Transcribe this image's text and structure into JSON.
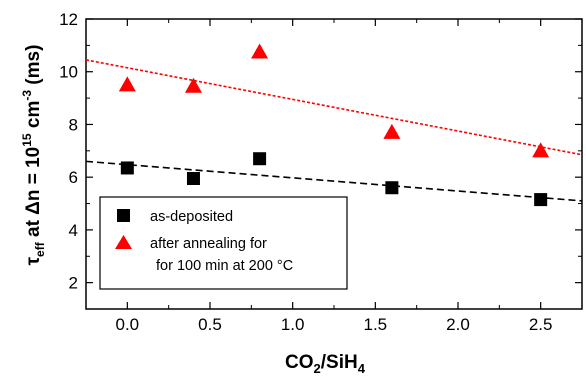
{
  "chart_data": {
    "type": "scatter",
    "xlabel": {
      "base": "CO",
      "sub1": "2",
      "mid": "/SiH",
      "sub2": "4"
    },
    "ylabel": {
      "tau": "τ",
      "tau_sub": "eff",
      "mid": " at Δn = 10",
      "exp": "15",
      "unit_pre": " cm",
      "unit_exp": "-3",
      "tail": " (ms)"
    },
    "xlim": [
      -0.25,
      2.75
    ],
    "ylim": [
      1,
      12
    ],
    "xticks": [
      "0.0",
      "0.5",
      "1.0",
      "1.5",
      "2.0",
      "2.5"
    ],
    "xtick_values": [
      0,
      0.5,
      1.0,
      1.5,
      2.0,
      2.5
    ],
    "yticks": [
      "2",
      "4",
      "6",
      "8",
      "10",
      "12"
    ],
    "ytick_values": [
      2,
      4,
      6,
      8,
      10,
      12
    ],
    "series": [
      {
        "name": "as-deposited",
        "marker": "square",
        "color": "#000000",
        "x": [
          0.0,
          0.4,
          0.8,
          1.6,
          2.5
        ],
        "y": [
          6.35,
          5.95,
          6.7,
          5.6,
          5.15
        ],
        "fit": {
          "x": [
            -0.25,
            2.75
          ],
          "y": [
            6.6,
            5.1
          ],
          "style": "dashed"
        }
      },
      {
        "name_lines": [
          "after annealing for",
          "for 100 min at 200 °C"
        ],
        "marker": "triangle",
        "color": "#ff0000",
        "x": [
          0.0,
          0.4,
          0.8,
          1.6,
          2.5
        ],
        "y": [
          9.5,
          9.45,
          10.75,
          7.7,
          7.0
        ],
        "fit": {
          "x": [
            -0.25,
            2.75
          ],
          "y": [
            10.45,
            6.85
          ],
          "style": "dotted"
        }
      }
    ],
    "legend_position": "bottom-left",
    "grid": false
  }
}
